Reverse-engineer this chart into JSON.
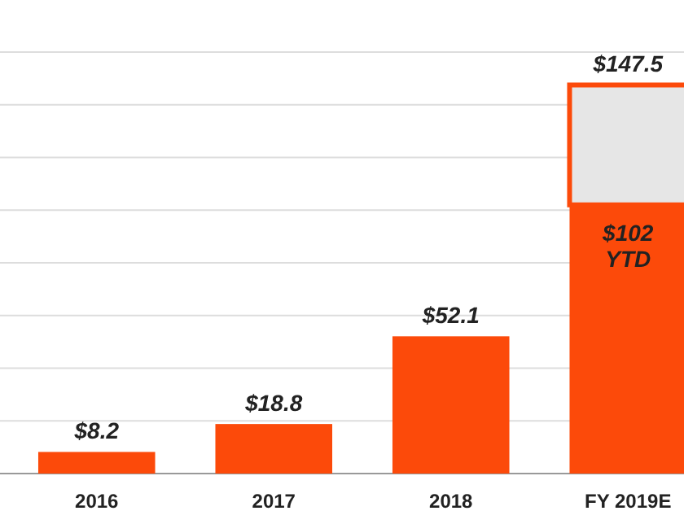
{
  "chart_data": {
    "type": "bar",
    "stacked": true,
    "categories": [
      "2016",
      "2017",
      "2018",
      "FY 2019E"
    ],
    "series": [
      {
        "color": "#fc4a0a",
        "values": [
          8.2,
          18.8,
          52.1,
          102
        ],
        "value_labels": [
          null,
          null,
          null,
          "$102 YTD"
        ]
      },
      {
        "color": "#e6e6e6",
        "values": [
          null,
          null,
          null,
          45.5
        ]
      }
    ],
    "totals": [
      "$8.2",
      "$18.8",
      "$52.1",
      "$147.5"
    ],
    "ylim": [
      0,
      160
    ],
    "yticks": [
      {
        "value": 0,
        "label": null
      },
      {
        "value": 20,
        "label": null
      },
      {
        "value": 40,
        "label": null
      },
      {
        "value": 60,
        "label": null
      },
      {
        "value": 80,
        "label": null
      },
      {
        "value": 100,
        "label": null
      },
      {
        "value": 120,
        "label": null
      },
      {
        "value": 140,
        "label": null
      },
      {
        "value": 160,
        "label": null
      }
    ],
    "grid": "y"
  }
}
